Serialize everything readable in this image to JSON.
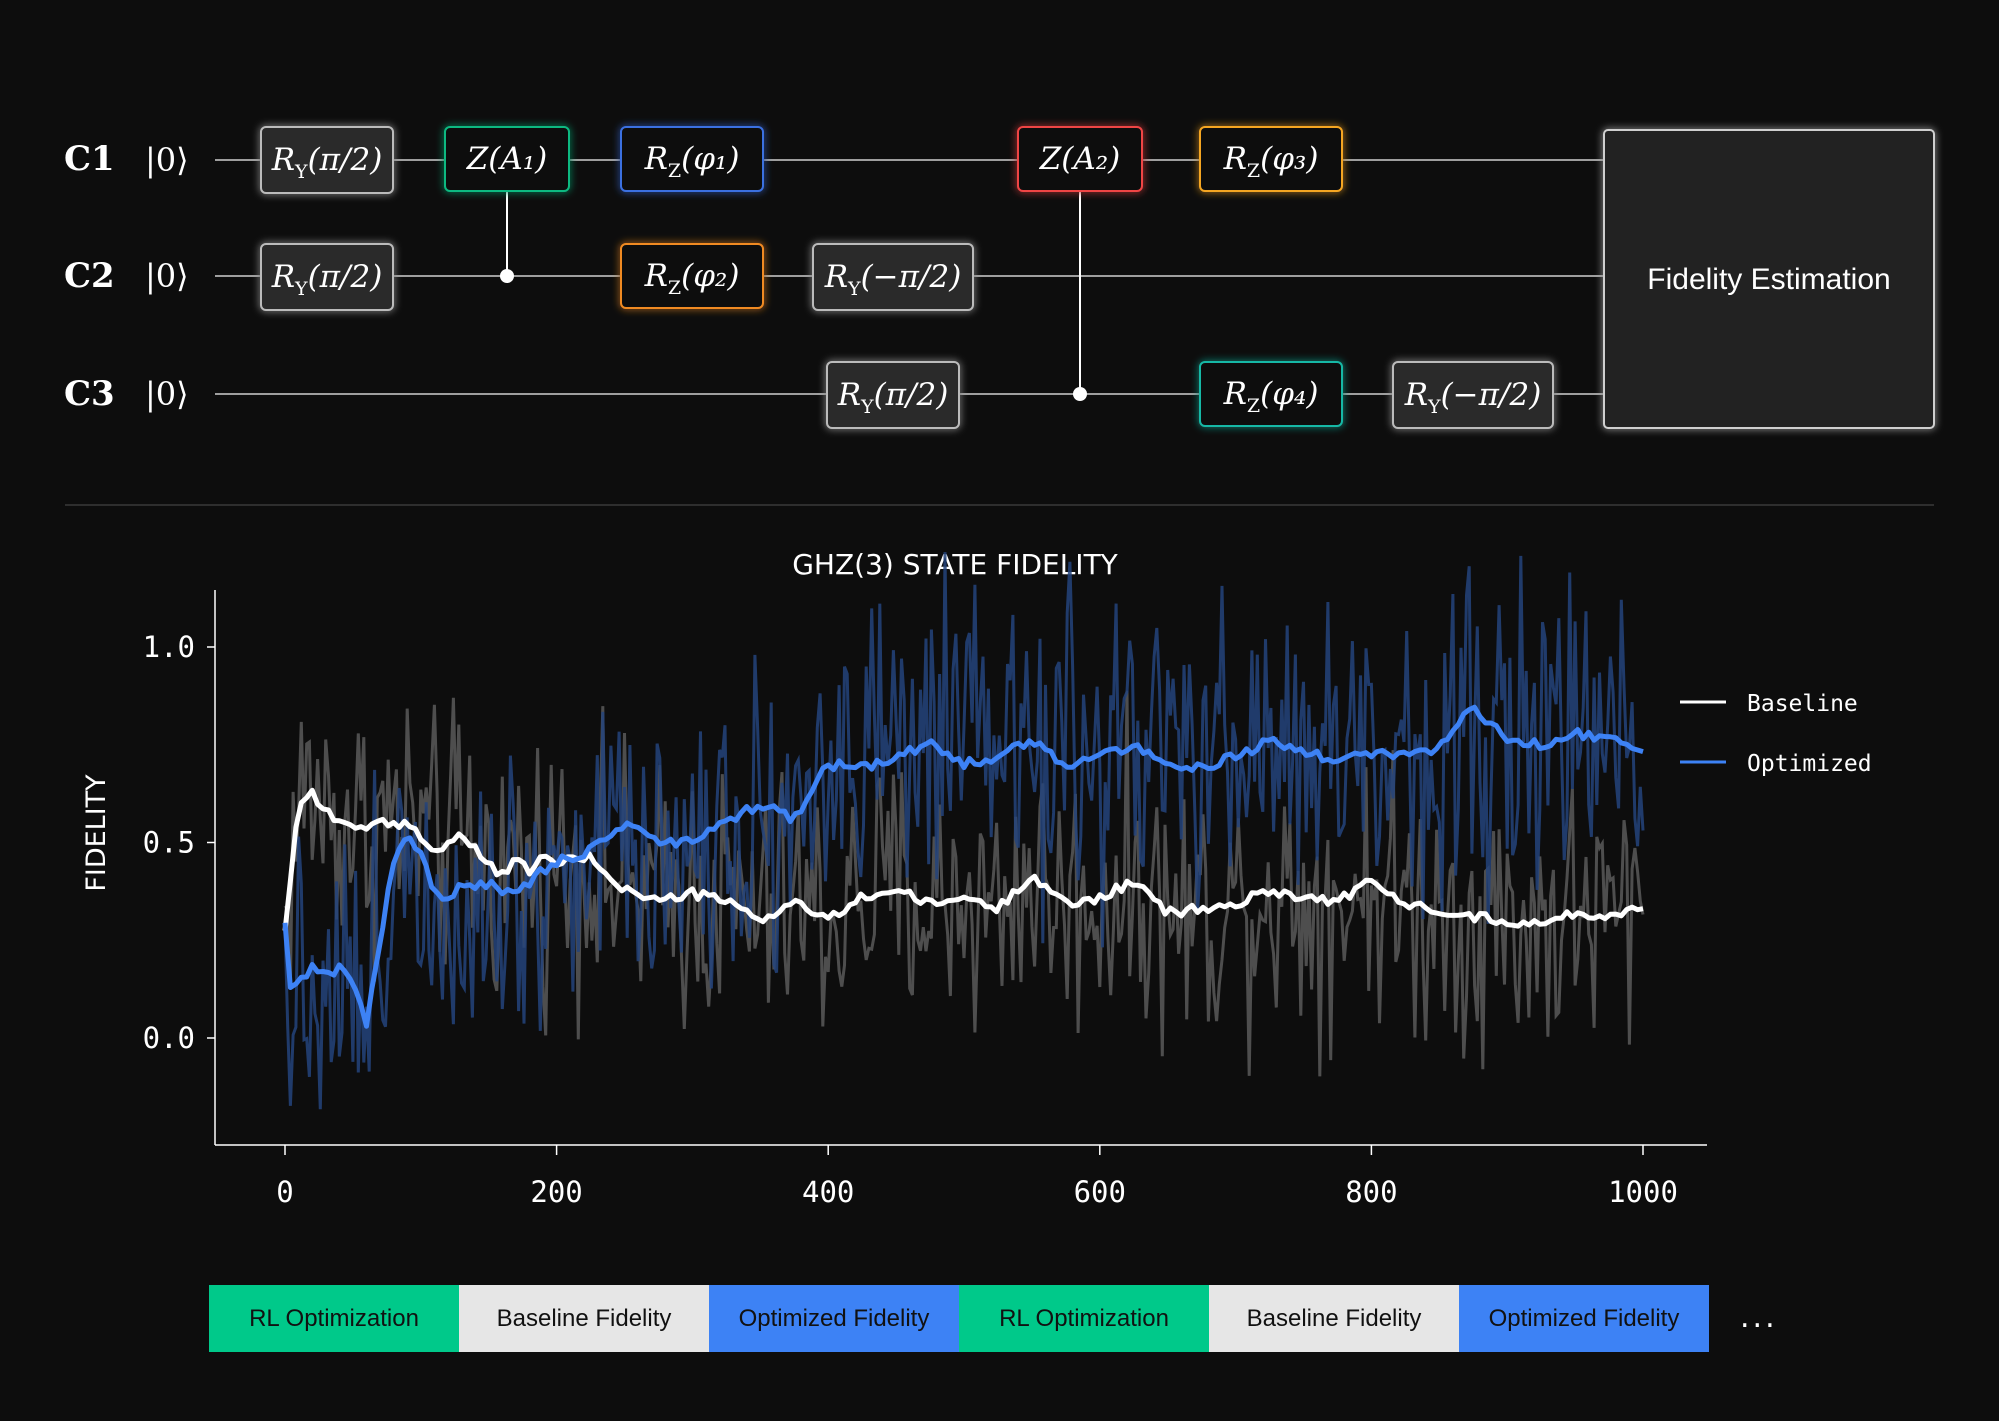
{
  "circuit": {
    "wires": [
      {
        "label": "C1",
        "ket": "|0⟩"
      },
      {
        "label": "C2",
        "ket": "|0⟩"
      },
      {
        "label": "C3",
        "ket": "|0⟩"
      }
    ],
    "gates": [
      {
        "id": "ry-c1",
        "main": "R",
        "sub": "Y",
        "arg": "(π/2)",
        "color": "#bbbbbb"
      },
      {
        "id": "ry-c2",
        "main": "R",
        "sub": "Y",
        "arg": "(π/2)",
        "color": "#bbbbbb"
      },
      {
        "id": "za1",
        "main": "Z",
        "sub": "",
        "arg": "(A₁)",
        "color": "#10b981"
      },
      {
        "id": "rz-phi1",
        "main": "R",
        "sub": "Z",
        "arg": "(φ₁)",
        "color": "#3b6fe0"
      },
      {
        "id": "rz-phi2",
        "main": "R",
        "sub": "Z",
        "arg": "(φ₂)",
        "color": "#f08a24"
      },
      {
        "id": "ry-neg-c2",
        "main": "R",
        "sub": "Y",
        "arg": "(−π/2)",
        "color": "#bbbbbb"
      },
      {
        "id": "ry-c3",
        "main": "R",
        "sub": "Y",
        "arg": "(π/2)",
        "color": "#bbbbbb"
      },
      {
        "id": "za2",
        "main": "Z",
        "sub": "",
        "arg": "(A₂)",
        "color": "#ef4444"
      },
      {
        "id": "rz-phi3",
        "main": "R",
        "sub": "Z",
        "arg": "(φ₃)",
        "color": "#f5a623"
      },
      {
        "id": "rz-phi4",
        "main": "R",
        "sub": "Z",
        "arg": "(φ₄)",
        "color": "#14b8a6"
      },
      {
        "id": "ry-neg-c3",
        "main": "R",
        "sub": "Y",
        "arg": "(−π/2)",
        "color": "#bbbbbb"
      }
    ],
    "fidelity_box": "Fidelity Estimation"
  },
  "chart_data": {
    "type": "line",
    "title": "GHZ(3) STATE FIDELITY",
    "xlabel": "",
    "ylabel": "FIDELITY",
    "xlim": [
      -25,
      1050
    ],
    "ylim": [
      -0.27,
      1.15
    ],
    "xticks": [
      "0",
      "200",
      "400",
      "600",
      "800",
      "1000"
    ],
    "xtick_values": [
      0,
      200,
      400,
      600,
      800,
      1000
    ],
    "yticks": [
      "0.0",
      "0.5",
      "1.0"
    ],
    "ytick_values": [
      0.0,
      0.5,
      1.0
    ],
    "legend": "right",
    "series": [
      {
        "name": "Baseline",
        "color": "#ffffff",
        "raw_color": "#5a5a5a",
        "x": [
          0,
          10,
          20,
          30,
          40,
          50,
          60,
          70,
          80,
          90,
          100,
          110,
          120,
          130,
          140,
          150,
          160,
          170,
          180,
          190,
          200,
          225,
          250,
          275,
          300,
          325,
          350,
          375,
          400,
          425,
          450,
          475,
          500,
          525,
          550,
          575,
          600,
          625,
          650,
          675,
          700,
          725,
          750,
          775,
          800,
          825,
          850,
          875,
          900,
          925,
          950,
          975,
          1000
        ],
        "values": [
          0.28,
          0.6,
          0.63,
          0.58,
          0.55,
          0.55,
          0.53,
          0.55,
          0.54,
          0.55,
          0.52,
          0.47,
          0.5,
          0.52,
          0.48,
          0.44,
          0.42,
          0.45,
          0.43,
          0.46,
          0.45,
          0.46,
          0.38,
          0.35,
          0.37,
          0.35,
          0.3,
          0.35,
          0.3,
          0.36,
          0.38,
          0.34,
          0.36,
          0.33,
          0.42,
          0.34,
          0.36,
          0.4,
          0.32,
          0.33,
          0.34,
          0.38,
          0.36,
          0.35,
          0.4,
          0.34,
          0.33,
          0.31,
          0.3,
          0.29,
          0.32,
          0.31,
          0.34
        ],
        "noise": 0.17
      },
      {
        "name": "Optimized",
        "color": "#3d82f5",
        "raw_color": "#24447c",
        "x": [
          0,
          5,
          10,
          20,
          30,
          40,
          50,
          60,
          70,
          80,
          90,
          100,
          110,
          120,
          130,
          140,
          150,
          160,
          170,
          180,
          190,
          200,
          225,
          250,
          275,
          300,
          325,
          350,
          375,
          400,
          425,
          450,
          475,
          500,
          525,
          550,
          575,
          600,
          625,
          650,
          675,
          700,
          725,
          750,
          775,
          800,
          825,
          850,
          875,
          900,
          925,
          950,
          975,
          1000
        ],
        "values": [
          0.3,
          0.1,
          0.15,
          0.18,
          0.16,
          0.18,
          0.14,
          0.04,
          0.25,
          0.45,
          0.52,
          0.47,
          0.37,
          0.35,
          0.4,
          0.38,
          0.4,
          0.37,
          0.38,
          0.4,
          0.43,
          0.45,
          0.48,
          0.55,
          0.5,
          0.5,
          0.55,
          0.6,
          0.56,
          0.7,
          0.69,
          0.72,
          0.75,
          0.7,
          0.72,
          0.76,
          0.7,
          0.72,
          0.75,
          0.7,
          0.69,
          0.72,
          0.76,
          0.73,
          0.71,
          0.73,
          0.72,
          0.74,
          0.85,
          0.76,
          0.75,
          0.78,
          0.76,
          0.74
        ],
        "noise": 0.2
      }
    ]
  },
  "workflow_strip": {
    "segments": [
      {
        "label": "RL Optimization",
        "kind": "rl"
      },
      {
        "label": "Baseline Fidelity",
        "kind": "base"
      },
      {
        "label": "Optimized Fidelity",
        "kind": "opt"
      },
      {
        "label": "RL Optimization",
        "kind": "rl"
      },
      {
        "label": "Baseline Fidelity",
        "kind": "base"
      },
      {
        "label": "Optimized Fidelity",
        "kind": "opt"
      }
    ],
    "ellipsis": "..."
  }
}
